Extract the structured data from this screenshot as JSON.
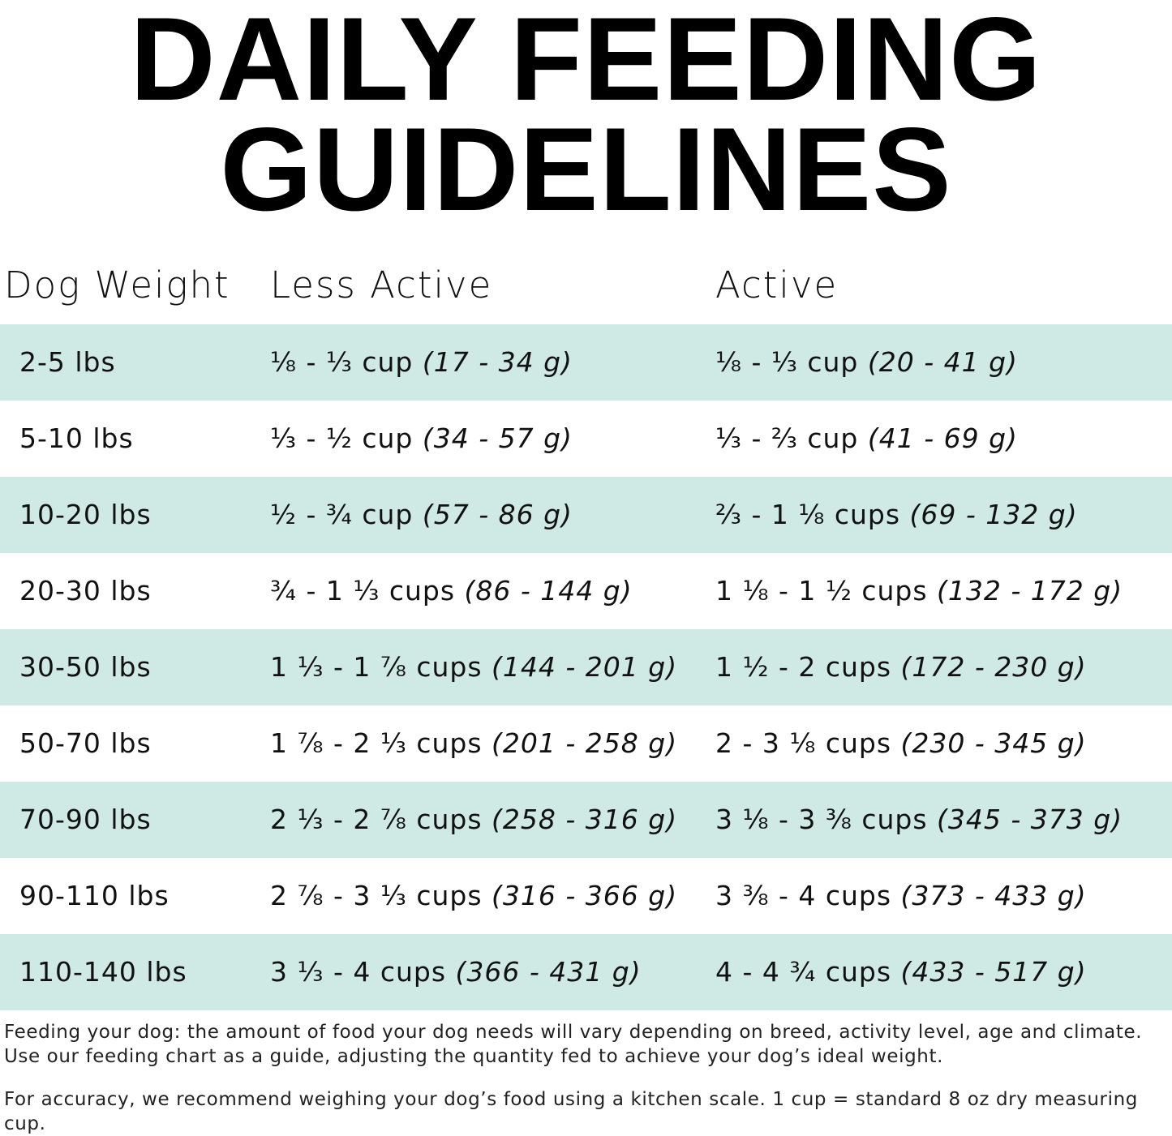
{
  "title_lines": [
    "DAILY FEEDING",
    "GUIDELINES"
  ],
  "table": {
    "headers": [
      "Dog Weight",
      "Less Active",
      "Active"
    ],
    "rows": [
      {
        "weight": "2-5 lbs",
        "less_active": {
          "cups": "⅛ - ⅓ cup",
          "grams": "(17 - 34 g)"
        },
        "active": {
          "cups": "⅛ - ⅓ cup",
          "grams": "(20 - 41 g)"
        }
      },
      {
        "weight": "5-10 lbs",
        "less_active": {
          "cups": "⅓ - ½ cup",
          "grams": "(34 - 57 g)"
        },
        "active": {
          "cups": "⅓ - ⅔ cup",
          "grams": "(41 - 69 g)"
        }
      },
      {
        "weight": "10-20 lbs",
        "less_active": {
          "cups": "½ - ¾ cup",
          "grams": "(57 - 86 g)"
        },
        "active": {
          "cups": "⅔ - 1 ⅛ cups",
          "grams": "(69 - 132 g)"
        }
      },
      {
        "weight": "20-30 lbs",
        "less_active": {
          "cups": "¾ - 1 ⅓ cups",
          "grams": "(86 - 144 g)"
        },
        "active": {
          "cups": "1 ⅛ - 1 ½ cups",
          "grams": "(132 - 172 g)"
        }
      },
      {
        "weight": "30-50 lbs",
        "less_active": {
          "cups": "1 ⅓ - 1 ⅞ cups",
          "grams": "(144 - 201 g)"
        },
        "active": {
          "cups": "1 ½ - 2 cups",
          "grams": "(172 - 230 g)"
        }
      },
      {
        "weight": "50-70 lbs",
        "less_active": {
          "cups": "1 ⅞ - 2 ⅓ cups",
          "grams": "(201 - 258 g)"
        },
        "active": {
          "cups": "2 - 3 ⅛ cups",
          "grams": "(230 - 345 g)"
        }
      },
      {
        "weight": "70-90 lbs",
        "less_active": {
          "cups": "2 ⅓ - 2 ⅞ cups",
          "grams": "(258 - 316 g)"
        },
        "active": {
          "cups": "3 ⅛ - 3 ⅜ cups",
          "grams": "(345 - 373 g)"
        }
      },
      {
        "weight": "90-110 lbs",
        "less_active": {
          "cups": "2 ⅞ - 3 ⅓ cups",
          "grams": "(316 - 366 g)"
        },
        "active": {
          "cups": "3 ⅜ - 4 cups",
          "grams": "(373 - 433 g)"
        }
      },
      {
        "weight": "110-140 lbs",
        "less_active": {
          "cups": "3 ⅓ - 4 cups",
          "grams": "(366 - 431 g)"
        },
        "active": {
          "cups": "4 - 4 ¾ cups",
          "grams": "(433 - 517 g)"
        }
      }
    ]
  },
  "notes": [
    "Feeding your dog: the amount of food your dog needs will vary depending on breed, activity level, age and climate. Use our feeding chart as a guide, adjusting the quantity fed to achieve your dog’s ideal weight.",
    "For accuracy, we recommend weighing your dog’s food using a kitchen scale. 1 cup = standard 8 oz dry measuring cup."
  ]
}
